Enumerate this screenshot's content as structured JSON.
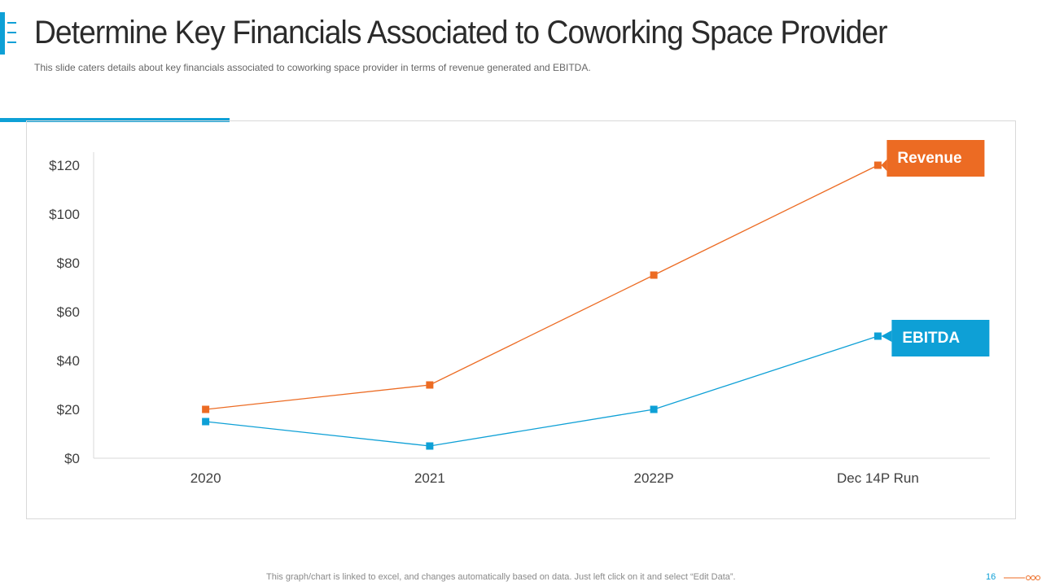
{
  "slide": {
    "title": "Determine Key Financials Associated to Coworking Space Provider",
    "subtitle": "This slide caters details about key financials associated to coworking space provider  in terms of revenue  generated and EBITDA.",
    "footer_note": "This graph/chart is linked to excel,  and changes automatically based on data. Just left click on it and select “Edit Data”.",
    "page_number": "16"
  },
  "colors": {
    "accent_blue": "#0ea0d6",
    "revenue_orange": "#ec6b23",
    "axis_grey": "#d9d9d9",
    "text_dark": "#2b2b2b"
  },
  "chart_data": {
    "type": "line",
    "title": "",
    "xlabel": "",
    "ylabel": "",
    "categories": [
      "2020",
      "2021",
      "2022P",
      "Dec 14P Run"
    ],
    "y_ticks": [
      "$0",
      "$20",
      "$40",
      "$60",
      "$80",
      "$100",
      "$120"
    ],
    "ylim": [
      0,
      125
    ],
    "grid": false,
    "series": [
      {
        "name": "Revenue",
        "color": "#ec6b23",
        "values": [
          20,
          30,
          75,
          120
        ]
      },
      {
        "name": "EBITDA",
        "color": "#0ea0d6",
        "values": [
          15,
          5,
          20,
          50
        ]
      }
    ]
  }
}
